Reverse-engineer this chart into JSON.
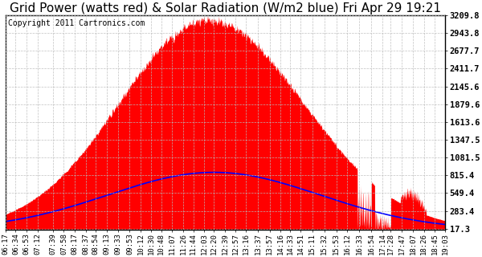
{
  "title": "Grid Power (watts red) & Solar Radiation (W/m2 blue) Fri Apr 29 19:21",
  "copyright_text": "Copyright 2011 Cartronics.com",
  "bg_color": "#ffffff",
  "plot_bg_color": "#ffffff",
  "grid_color": "#bbbbbb",
  "red_fill_color": "#ff0000",
  "blue_line_color": "#0000ff",
  "ytick_labels": [
    17.3,
    283.4,
    549.4,
    815.4,
    1081.5,
    1347.5,
    1613.6,
    1879.6,
    2145.6,
    2411.7,
    2677.7,
    2943.8,
    3209.8
  ],
  "ymin": 0,
  "ymax": 3209.8,
  "time_labels": [
    "06:17",
    "06:34",
    "06:53",
    "07:12",
    "07:39",
    "07:58",
    "08:17",
    "08:37",
    "08:54",
    "09:13",
    "09:33",
    "09:53",
    "10:12",
    "10:30",
    "10:48",
    "11:07",
    "11:26",
    "11:44",
    "12:03",
    "12:20",
    "12:39",
    "12:57",
    "13:16",
    "13:37",
    "13:57",
    "14:16",
    "14:33",
    "14:51",
    "15:11",
    "15:32",
    "15:53",
    "16:12",
    "16:33",
    "16:54",
    "17:14",
    "17:28",
    "17:47",
    "18:07",
    "18:26",
    "18:45",
    "19:03"
  ],
  "title_fontsize": 11,
  "copyright_fontsize": 7,
  "tick_fontsize": 6.5,
  "ytick_fontsize": 7.5
}
